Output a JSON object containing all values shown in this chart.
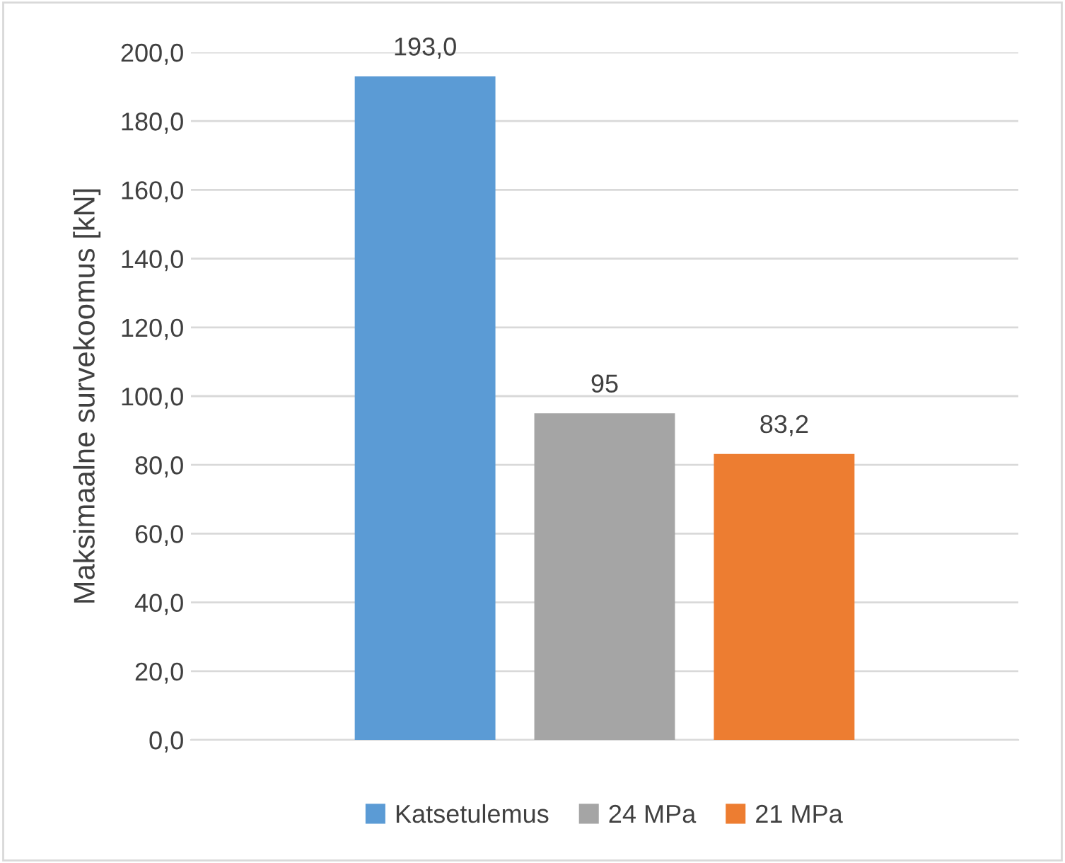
{
  "chart_data": {
    "type": "bar",
    "ylabel": "Maksimaalne survekoomus [kN]",
    "categories": [
      null
    ],
    "series": [
      {
        "name": "Katsetulemus",
        "color": "#5b9bd5",
        "values": [
          193.0
        ],
        "value_labels": [
          "193,0"
        ]
      },
      {
        "name": "24 MPa",
        "color": "#a5a5a5",
        "values": [
          95
        ],
        "value_labels": [
          "95"
        ]
      },
      {
        "name": "21 MPa",
        "color": "#ed7d31",
        "values": [
          83.2
        ],
        "value_labels": [
          "83,2"
        ]
      }
    ],
    "ylim": [
      0,
      200
    ],
    "yticks": [
      {
        "value": 0,
        "label": "0,0"
      },
      {
        "value": 20,
        "label": "20,0"
      },
      {
        "value": 40,
        "label": "40,0"
      },
      {
        "value": 60,
        "label": "60,0"
      },
      {
        "value": 80,
        "label": "80,0"
      },
      {
        "value": 100,
        "label": "100,0"
      },
      {
        "value": 120,
        "label": "120,0"
      },
      {
        "value": 140,
        "label": "140,0"
      },
      {
        "value": 160,
        "label": "160,0"
      },
      {
        "value": 180,
        "label": "180,0"
      },
      {
        "value": 200,
        "label": "200,0"
      }
    ],
    "grid": "y",
    "legend": "bottom"
  }
}
